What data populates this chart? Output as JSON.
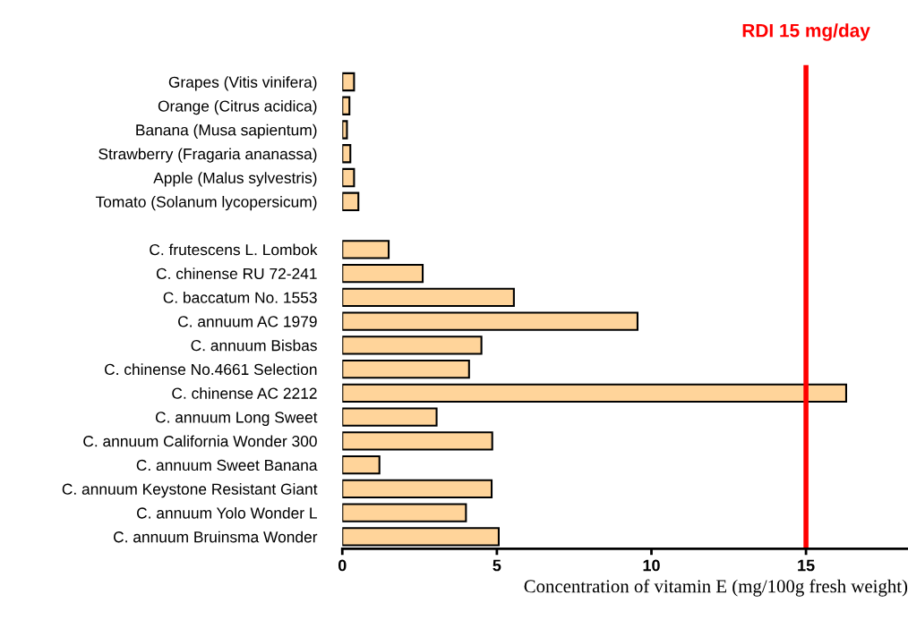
{
  "chart_data": {
    "type": "bar",
    "orientation": "horizontal",
    "xlabel": "Concentration of vitamin E (mg/100g fresh weight)",
    "categories": [
      "Grapes (Vitis vinifera)",
      "Orange (Citrus acidica)",
      "Banana (Musa sapientum)",
      "Strawberry (Fragaria ananassa)",
      "Apple (Malus sylvestris)",
      "Tomato (Solanum lycopersicum)",
      null,
      "C. frutescens L. Lombok",
      "C. chinense RU 72-241",
      "C. baccatum No. 1553",
      "C. annuum AC 1979",
      "C. annuum Bisbas",
      "C. chinense No.4661 Selection",
      "C. chinense AC 2212",
      "C. annuum Long Sweet",
      "C. annuum California Wonder 300",
      "C. annuum Sweet Banana",
      "C. annuum Keystone Resistant Giant",
      "C. annuum Yolo Wonder L",
      "C. annuum Bruinsma Wonder"
    ],
    "values": [
      0.38,
      0.23,
      0.15,
      0.26,
      0.38,
      0.52,
      null,
      1.5,
      2.6,
      5.55,
      9.55,
      4.5,
      4.1,
      16.3,
      3.05,
      4.85,
      1.2,
      4.83,
      4.0,
      5.06
    ],
    "color": "#ffd49a",
    "xlim": [
      0,
      18.3
    ],
    "xticks": [
      0,
      5,
      10,
      15
    ],
    "grid": false,
    "legend": false,
    "ref_lines": [
      {
        "axis": "x",
        "value": 15,
        "label": "RDI 15 mg/day",
        "color": "#ff0000"
      }
    ]
  }
}
